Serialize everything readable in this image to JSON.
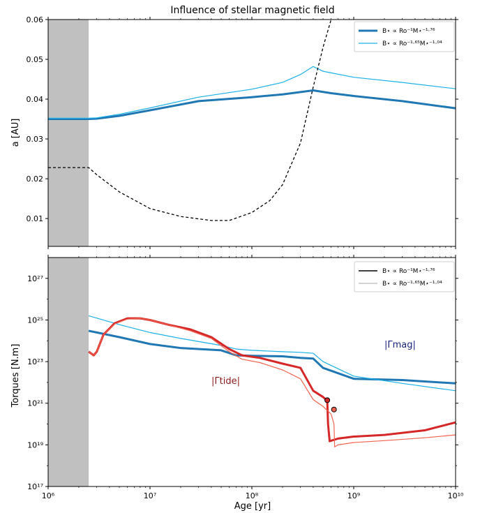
{
  "chart_data": [
    {
      "type": "line",
      "title": "Influence of stellar magnetic field",
      "xlabel": "",
      "ylabel": "a [AU]",
      "xscale": "log",
      "xlim": [
        1000000,
        10000000000
      ],
      "ylim": [
        0.003,
        0.06
      ],
      "yticks": [
        "0.01",
        "0.02",
        "0.03",
        "0.04",
        "0.05",
        "0.06"
      ],
      "shaded_region": [
        1000000,
        2500000
      ],
      "legend_position": "top-right",
      "legend": [
        "B⋆ ∝ Ro⁻¹M⋆⁻¹·⁷⁶",
        "B⋆ ∝ Ro⁻¹·⁶⁵M⋆⁻¹·⁰⁴"
      ],
      "series": [
        {
          "name": "B⋆ ∝ Ro⁻¹M⋆⁻¹·⁷⁶",
          "color": "#1f77b4",
          "x": [
            1000000,
            2500000,
            3000000,
            5000000,
            10000000,
            30000000,
            100000000,
            200000000,
            400000000,
            600000000,
            1000000000,
            3000000000,
            10000000000
          ],
          "y": [
            0.035,
            0.035,
            0.0351,
            0.0358,
            0.0372,
            0.0395,
            0.0405,
            0.0412,
            0.0422,
            0.0415,
            0.0408,
            0.0395,
            0.0377
          ]
        },
        {
          "name": "B⋆ ∝ Ro⁻¹·⁶⁵M⋆⁻¹·⁰⁴",
          "color": "#1ab0e8",
          "x": [
            1000000,
            2500000,
            3000000,
            5000000,
            10000000,
            30000000,
            100000000,
            200000000,
            300000000,
            400000000,
            500000000,
            1000000000,
            3000000000,
            10000000000
          ],
          "y": [
            0.0352,
            0.0352,
            0.0353,
            0.0362,
            0.0378,
            0.0405,
            0.0425,
            0.0442,
            0.0462,
            0.0482,
            0.047,
            0.0455,
            0.0442,
            0.0426
          ]
        },
        {
          "name": "",
          "color": "#000000",
          "dashed": true,
          "x": [
            1000000,
            2500000,
            3000000,
            5000000,
            10000000,
            20000000,
            40000000,
            60000000,
            100000000,
            150000000,
            200000000,
            300000000,
            400000000,
            500000000,
            600000000
          ],
          "y": [
            0.0228,
            0.0228,
            0.021,
            0.0167,
            0.0125,
            0.0105,
            0.0095,
            0.0095,
            0.0115,
            0.0145,
            0.0185,
            0.029,
            0.043,
            0.053,
            0.06
          ]
        }
      ]
    },
    {
      "type": "line",
      "title": "",
      "xlabel": "Age [yr]",
      "ylabel": "Torques [N.m]",
      "xscale": "log",
      "yscale": "log",
      "xlim": [
        1000000,
        10000000000
      ],
      "ylim": [
        1e+17,
        1e+28
      ],
      "xticks": [
        "10⁶",
        "10⁷",
        "10⁸",
        "10⁹",
        "10¹⁰"
      ],
      "yticks": [
        "10¹⁷",
        "10¹⁹",
        "10²¹",
        "10²³",
        "10²⁵",
        "10²⁷"
      ],
      "shaded_region": [
        1000000,
        2500000
      ],
      "legend_position": "top-right",
      "legend": [
        "B⋆ ∝ Ro⁻¹M⋆⁻¹·⁷⁶",
        "B⋆ ∝ Ro⁻¹·⁶⁵M⋆⁻¹·⁰⁴"
      ],
      "annotations": [
        "|Γtide|",
        "|Γmag|"
      ],
      "series": [
        {
          "name": "",
          "color": "#1f77b4",
          "x": [
            2500000,
            5000000,
            10000000,
            20000000,
            50000000,
            70000000,
            100000000,
            200000000,
            300000000,
            400000000,
            500000000,
            1000000000,
            3000000000,
            10000000000
          ],
          "y": [
            3e+24,
            1.5e+24,
            7e+23,
            4.5e+23,
            3.5e+23,
            2e+23,
            1.9e+23,
            1.8e+23,
            1.5e+23,
            1.4e+23,
            5e+22,
            1.5e+22,
            1.3e+22,
            9e+21
          ]
        },
        {
          "name": "",
          "color": "#1ab0e8",
          "x": [
            2500000,
            5000000,
            10000000,
            20000000,
            50000000,
            70000000,
            100000000,
            200000000,
            300000000,
            400000000,
            500000000,
            1000000000,
            3000000000,
            10000000000
          ],
          "y": [
            1.6e+25,
            6e+24,
            2.5e+24,
            1.3e+24,
            6e+23,
            4e+23,
            3.5e+23,
            3e+23,
            2.8e+23,
            2.5e+23,
            1e+23,
            2e+22,
            9e+21,
            4e+21
          ]
        },
        {
          "name": "",
          "color": "#d62728",
          "x": [
            2500000,
            2800000,
            3000000,
            3500000,
            4500000,
            6000000,
            8000000,
            10000000,
            15000000,
            25000000,
            40000000,
            60000000,
            80000000,
            120000000,
            200000000,
            300000000,
            400000000,
            500000000,
            550000000,
            560000000,
            580000000,
            700000000,
            1000000000,
            2000000000,
            5000000000,
            10000000000
          ],
          "y": [
            3e+23,
            2e+23,
            3e+23,
            2e+24,
            7e+24,
            1.2e+25,
            1.2e+25,
            1e+25,
            6e+24,
            3.5e+24,
            1.5e+24,
            4e+23,
            2e+23,
            1.5e+23,
            8e+22,
            5e+22,
            4e+21,
            2e+21,
            1.3e+21,
            1e+20,
            1.5e+19,
            2e+19,
            2.5e+19,
            3e+19,
            5e+19,
            1.2e+20
          ]
        },
        {
          "name": "",
          "color": "#f0624d",
          "x": [
            2500000,
            2800000,
            3000000,
            3500000,
            4500000,
            6000000,
            8000000,
            10000000,
            15000000,
            25000000,
            40000000,
            60000000,
            80000000,
            120000000,
            200000000,
            300000000,
            400000000,
            500000000,
            600000000,
            640000000,
            650000000,
            700000000,
            1000000000,
            2000000000,
            5000000000,
            10000000000
          ],
          "y": [
            3e+23,
            2e+23,
            3e+23,
            2e+24,
            6.5e+24,
            1.1e+25,
            1.2e+25,
            1e+25,
            6e+24,
            3e+24,
            1.3e+24,
            3e+23,
            1.3e+23,
            9e+22,
            4e+22,
            1.5e+22,
            1.5e+21,
            7e+20,
            3e+20,
            1e+20,
            8e+18,
            1e+19,
            1.3e+19,
            1.6e+19,
            2.2e+19,
            3e+19
          ]
        }
      ],
      "markers": [
        {
          "x": 550000000,
          "y": 1.4e+21,
          "color": "#d62728"
        },
        {
          "x": 640000000,
          "y": 5e+20,
          "color": "#f0624d"
        }
      ]
    }
  ],
  "colors": {
    "shade": "#c0c0c0",
    "legend_gray": "#bbbbbb"
  }
}
